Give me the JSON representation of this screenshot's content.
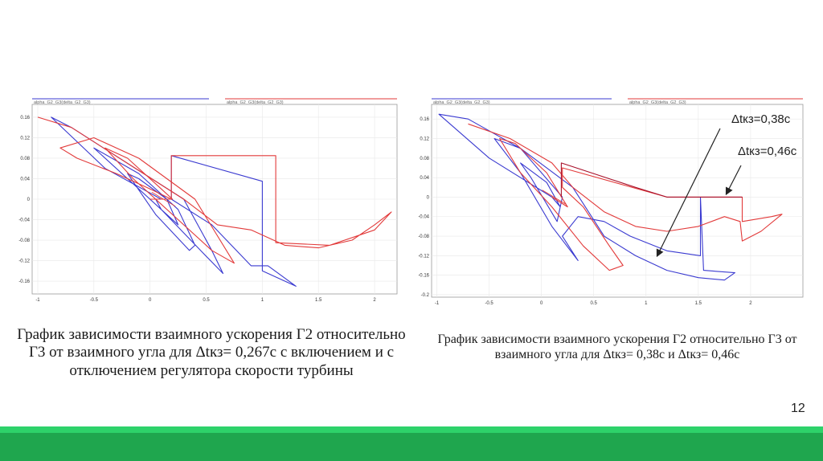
{
  "colors": {
    "blue": "#3a3ad0",
    "red": "#e23a3a",
    "dark_red": "#a8102a",
    "green": "#1fa64e",
    "green_light": "#2ed26a"
  },
  "chart_data": [
    {
      "type": "line",
      "legend": [
        "alpha_G2_G3(delta_G2_G3)",
        "alpha_G2_G3(delta_G2_G3)"
      ],
      "xlim": [
        -1.05,
        2.2
      ],
      "ylim": [
        -0.185,
        0.185
      ],
      "x_ticks": [
        -1,
        -0.5,
        0,
        0.5,
        1,
        1.5,
        2
      ],
      "y_ticks": [
        0.16,
        0.12,
        0.08,
        0.04,
        0,
        -0.04,
        -0.08,
        -0.12,
        -0.16
      ],
      "x_tick_labels": [
        "-1",
        "-0.5",
        "0",
        "0.5",
        "1",
        "1.5",
        "2"
      ],
      "y_tick_labels": [
        "0.16",
        "0.12",
        "0.08",
        "0.04",
        "0",
        "-0.04",
        "-0.08",
        "-0.12",
        "-0.16"
      ],
      "series": [
        {
          "color": "#3a3ad0",
          "points": [
            [
              0.1,
              0.0
            ],
            [
              -0.4,
              0.06
            ],
            [
              -0.88,
              0.16
            ],
            [
              -0.7,
              0.14
            ],
            [
              -0.2,
              0.07
            ],
            [
              0.3,
              0.0
            ],
            [
              0.55,
              -0.1
            ],
            [
              0.65,
              -0.145
            ],
            [
              0.45,
              -0.1
            ],
            [
              0.1,
              -0.02
            ],
            [
              -0.45,
              0.09
            ],
            [
              -0.5,
              0.1
            ],
            [
              -0.1,
              0.05
            ],
            [
              0.25,
              -0.02
            ],
            [
              0.4,
              -0.09
            ],
            [
              0.35,
              -0.1
            ],
            [
              0.05,
              -0.03
            ],
            [
              -0.2,
              0.05
            ],
            [
              -0.1,
              0.04
            ],
            [
              0.15,
              0.0
            ],
            [
              0.25,
              -0.05
            ],
            [
              0.1,
              -0.02
            ],
            [
              0.05,
              0.0
            ],
            [
              0.19,
              0.0
            ],
            [
              0.19,
              0.085
            ],
            [
              1.0,
              0.035
            ],
            [
              1.0,
              -0.14
            ],
            [
              1.3,
              -0.17
            ],
            [
              1.05,
              -0.13
            ],
            [
              0.9,
              -0.13
            ],
            [
              0.55,
              -0.05
            ],
            [
              0.19,
              0.0
            ]
          ]
        },
        {
          "color": "#e23a3a",
          "points": [
            [
              -1.0,
              0.16
            ],
            [
              -0.7,
              0.14
            ],
            [
              -0.2,
              0.07
            ],
            [
              0.3,
              0.0
            ],
            [
              0.6,
              -0.05
            ],
            [
              0.9,
              -0.06
            ],
            [
              1.2,
              -0.09
            ],
            [
              1.5,
              -0.095
            ],
            [
              1.8,
              -0.08
            ],
            [
              2.0,
              -0.05
            ],
            [
              2.15,
              -0.025
            ],
            [
              2.0,
              -0.06
            ],
            [
              1.6,
              -0.09
            ],
            [
              1.12,
              -0.085
            ],
            [
              1.12,
              0.085
            ],
            [
              0.19,
              0.085
            ],
            [
              0.19,
              0.0
            ],
            [
              0.0,
              0.02
            ],
            [
              -0.3,
              0.05
            ],
            [
              -0.65,
              0.08
            ],
            [
              -0.8,
              0.1
            ],
            [
              -0.5,
              0.12
            ],
            [
              -0.1,
              0.08
            ],
            [
              0.4,
              0.0
            ],
            [
              0.75,
              -0.125
            ],
            [
              0.55,
              -0.1
            ],
            [
              0.2,
              -0.03
            ],
            [
              -0.15,
              0.04
            ],
            [
              -0.4,
              0.1
            ],
            [
              -0.2,
              0.08
            ],
            [
              0.1,
              0.02
            ],
            [
              0.2,
              0.0
            ],
            [
              0.0,
              0.0
            ]
          ]
        }
      ]
    },
    {
      "type": "line",
      "legend": [
        "alpha_G2_G3(delta_G2_G3)",
        "alpha_G2_G3(delta_G2_G3)"
      ],
      "xlim": [
        -1.05,
        2.5
      ],
      "ylim": [
        -0.205,
        0.19
      ],
      "x_ticks": [
        -1,
        -0.5,
        0,
        0.5,
        1,
        1.5,
        2
      ],
      "y_ticks": [
        0.16,
        0.12,
        0.08,
        0.04,
        0,
        -0.04,
        -0.08,
        -0.12,
        -0.16,
        -0.2
      ],
      "x_tick_labels": [
        "-1",
        "-0.5",
        "0",
        "0.5",
        "1",
        "1.5",
        "2"
      ],
      "y_tick_labels": [
        "0.16",
        "0.12",
        "0.08",
        "0.04",
        "0",
        "-0.04",
        "-0.08",
        "-0.12",
        "-0.16",
        "-0.2"
      ],
      "series": [
        {
          "color": "#3a3ad0",
          "points": [
            [
              0.1,
              0.0
            ],
            [
              -0.5,
              0.08
            ],
            [
              -0.98,
              0.17
            ],
            [
              -0.7,
              0.16
            ],
            [
              -0.2,
              0.1
            ],
            [
              0.3,
              0.02
            ],
            [
              0.6,
              -0.08
            ],
            [
              0.9,
              -0.12
            ],
            [
              1.2,
              -0.15
            ],
            [
              1.5,
              -0.165
            ],
            [
              1.75,
              -0.17
            ],
            [
              1.85,
              -0.155
            ],
            [
              1.55,
              -0.15
            ],
            [
              1.52,
              -0.0
            ],
            [
              1.52,
              -0.12
            ],
            [
              1.2,
              -0.11
            ],
            [
              0.85,
              -0.08
            ],
            [
              0.6,
              -0.05
            ],
            [
              0.35,
              -0.04
            ],
            [
              0.2,
              -0.08
            ],
            [
              0.35,
              -0.13
            ],
            [
              0.1,
              -0.06
            ],
            [
              -0.2,
              0.05
            ],
            [
              -0.45,
              0.12
            ],
            [
              -0.2,
              0.1
            ],
            [
              0.2,
              0.0
            ],
            [
              0.15,
              -0.05
            ],
            [
              -0.1,
              0.04
            ],
            [
              -0.2,
              0.07
            ],
            [
              0.05,
              0.03
            ],
            [
              0.18,
              -0.02
            ],
            [
              0.1,
              0.0
            ]
          ]
        },
        {
          "color": "#e23a3a",
          "points": [
            [
              -0.7,
              0.15
            ],
            [
              -0.3,
              0.12
            ],
            [
              0.1,
              0.07
            ],
            [
              0.3,
              0.02
            ],
            [
              0.6,
              -0.03
            ],
            [
              0.9,
              -0.06
            ],
            [
              1.2,
              -0.07
            ],
            [
              1.5,
              -0.06
            ],
            [
              1.75,
              -0.04
            ],
            [
              1.9,
              -0.05
            ],
            [
              1.92,
              -0.09
            ],
            [
              2.1,
              -0.07
            ],
            [
              2.3,
              -0.035
            ],
            [
              2.2,
              -0.04
            ],
            [
              1.92,
              -0.05
            ],
            [
              1.92,
              0.0
            ],
            [
              1.2,
              0.0
            ],
            [
              0.2,
              0.06
            ],
            [
              0.2,
              0.02
            ],
            [
              0.4,
              -0.02
            ],
            [
              0.65,
              -0.1
            ],
            [
              0.78,
              -0.14
            ],
            [
              0.65,
              -0.15
            ],
            [
              0.4,
              -0.1
            ],
            [
              0.1,
              -0.02
            ],
            [
              -0.2,
              0.05
            ],
            [
              -0.4,
              0.12
            ],
            [
              -0.25,
              0.11
            ],
            [
              0.05,
              0.05
            ],
            [
              0.25,
              -0.02
            ],
            [
              0.1,
              0.0
            ]
          ]
        },
        {
          "color": "#a8102a",
          "points": [
            [
              0.19,
              0.0
            ],
            [
              0.19,
              0.07
            ],
            [
              0.9,
              0.02
            ],
            [
              1.2,
              0.0
            ],
            [
              1.92,
              0.0
            ]
          ]
        }
      ]
    }
  ],
  "captions": {
    "left": "График зависимости взаимного ускорения Г2 относительно Г3 от взаимного угла для Δtкз= 0,267с с включением  и с отключением регулятора скорости турбины",
    "right": "График зависимости взаимного ускорения Г2 относительно Г3 от взаимного угла для Δtкз= 0,38с и Δtкз= 0,46с"
  },
  "annotations": [
    "Δtкз=0,38с",
    "Δtкз=0,46с"
  ],
  "slide_number": "12"
}
